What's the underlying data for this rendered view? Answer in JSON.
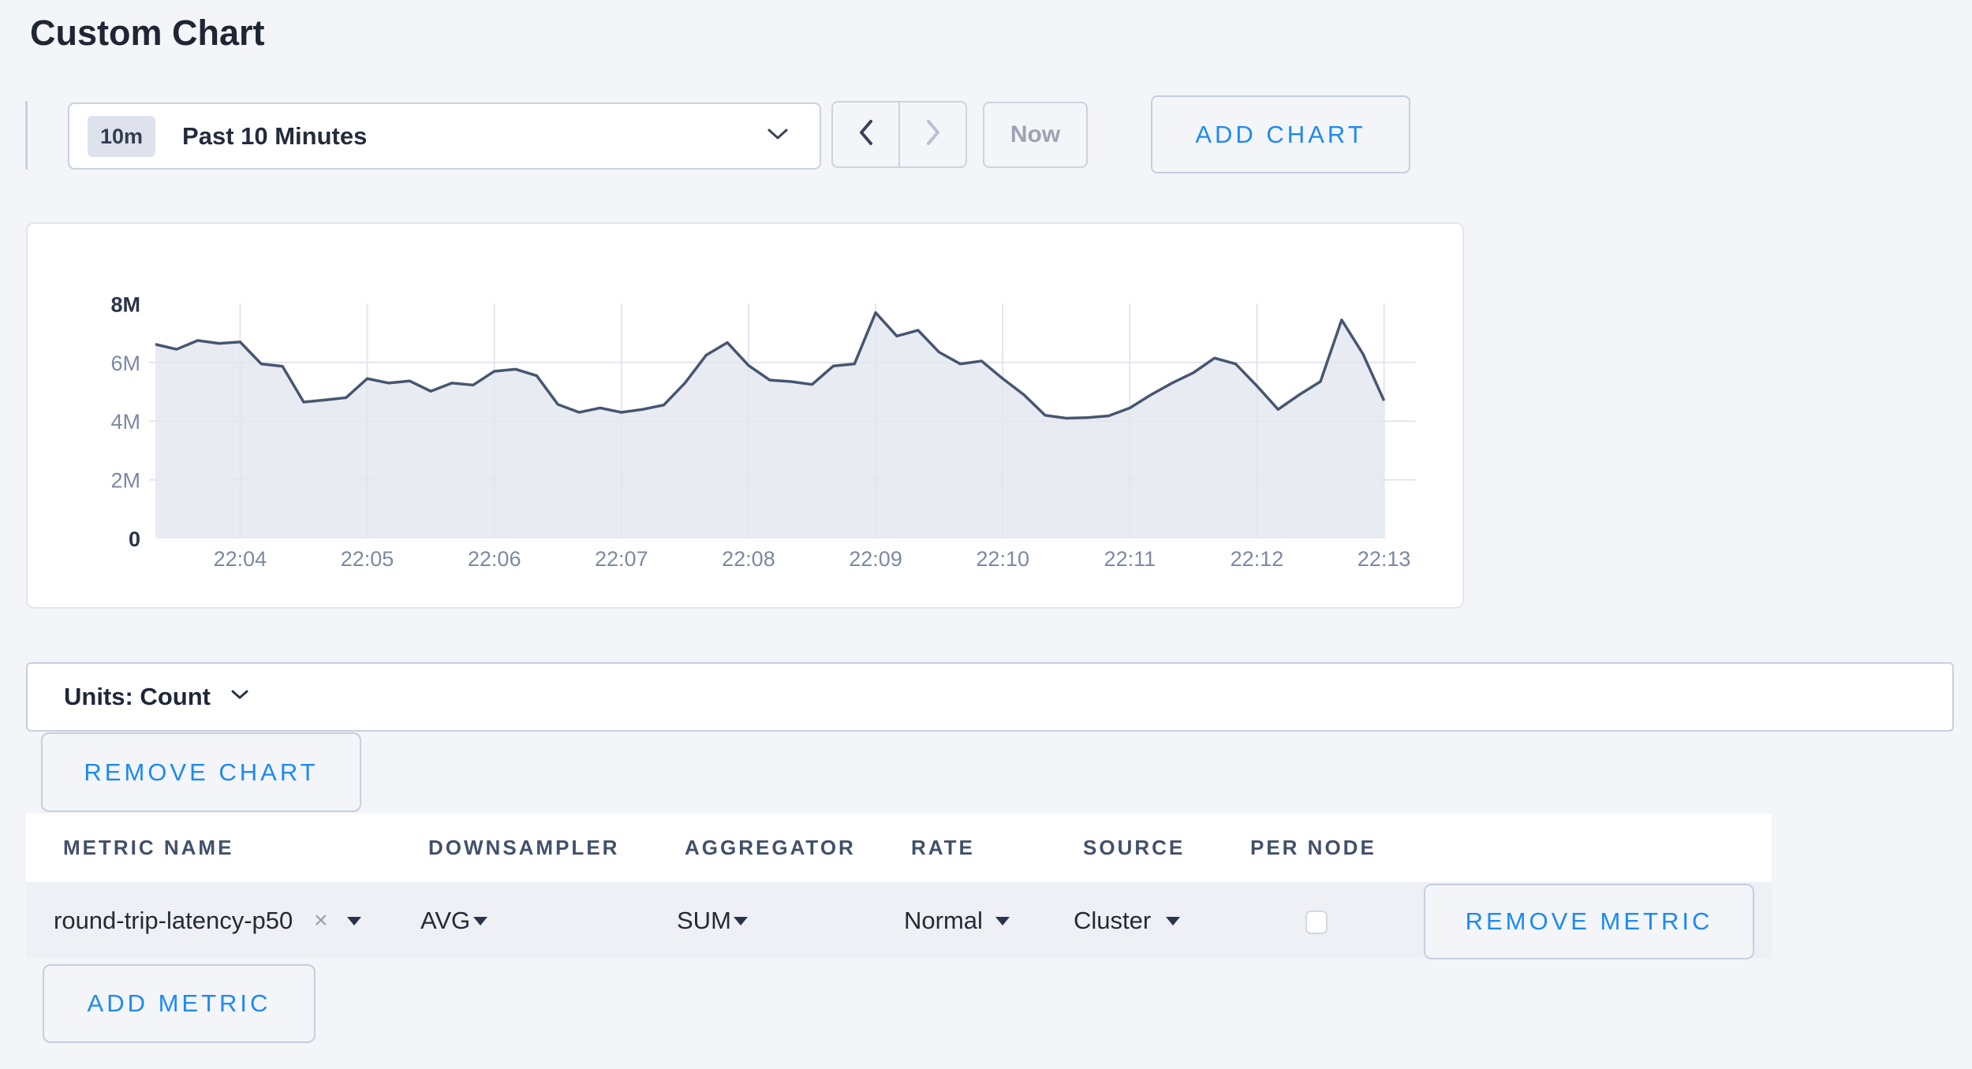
{
  "page": {
    "title": "Custom Chart"
  },
  "toolbar": {
    "time_window_badge": "10m",
    "time_window_label": "Past 10 Minutes",
    "now_label": "Now",
    "add_chart_label": "ADD CHART"
  },
  "units_bar": {
    "label": "Units: Count"
  },
  "remove_chart_label": "REMOVE CHART",
  "metrics_table": {
    "headers": [
      "METRIC NAME",
      "DOWNSAMPLER",
      "AGGREGATOR",
      "RATE",
      "SOURCE",
      "PER NODE"
    ],
    "row": {
      "metric_name": "round-trip-latency-p50",
      "clear_symbol": "×",
      "downsampler": "AVG",
      "aggregator": "SUM",
      "rate": "Normal",
      "source": "Cluster",
      "per_node_checked": false,
      "remove_label": "REMOVE METRIC"
    },
    "add_metric_label": "ADD METRIC"
  },
  "colors": {
    "accent_blue": "#1b8af2",
    "chart_line": "#475670",
    "chart_fill": "#e7eaf2",
    "gridline": "#e2e5ee",
    "axis_label_gray": "#7c89a3",
    "axis_label_dark": "#2b3447",
    "row_bg": "#eef0f6"
  },
  "chart_data": {
    "type": "area",
    "title": "",
    "xlabel": "",
    "ylabel": "",
    "unit": "count",
    "x_start": "22:03:20",
    "x_interval_seconds": 10,
    "x_tick_labels": [
      "22:04",
      "22:05",
      "22:06",
      "22:07",
      "22:08",
      "22:09",
      "22:10",
      "22:11",
      "22:12",
      "22:13"
    ],
    "y_tick_labels": [
      "0",
      "2M",
      "4M",
      "6M",
      "8M"
    ],
    "y_tick_values_millions": [
      0,
      2,
      4,
      6,
      8
    ],
    "ylim_millions": [
      0,
      8
    ],
    "grid": true,
    "legend": "none",
    "values_millions": [
      6.62,
      6.45,
      6.75,
      6.65,
      6.7,
      5.95,
      5.87,
      4.65,
      4.72,
      4.8,
      5.45,
      5.3,
      5.37,
      5.02,
      5.3,
      5.23,
      5.7,
      5.77,
      5.55,
      4.57,
      4.3,
      4.45,
      4.3,
      4.4,
      4.55,
      5.3,
      6.25,
      6.68,
      5.9,
      5.4,
      5.35,
      5.25,
      5.88,
      5.95,
      7.7,
      6.9,
      7.1,
      6.35,
      5.95,
      6.05,
      5.45,
      4.9,
      4.2,
      4.1,
      4.12,
      4.18,
      4.45,
      4.9,
      5.3,
      5.65,
      6.15,
      5.95,
      5.2,
      4.4,
      4.9,
      5.35,
      7.45,
      6.3,
      4.7
    ]
  }
}
